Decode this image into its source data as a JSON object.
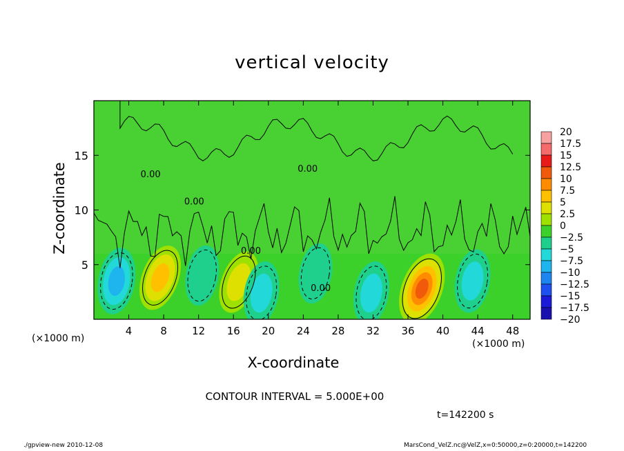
{
  "chart_data": {
    "type": "heatmap",
    "title": "vertical velocity",
    "xlabel": "X-coordinate",
    "ylabel": "Z-coordinate",
    "x_unit_label": "(×1000 m)",
    "xlim": [
      0,
      50
    ],
    "ylim": [
      0,
      20
    ],
    "x_ticks": [
      4,
      8,
      12,
      16,
      20,
      24,
      28,
      32,
      36,
      40,
      44,
      48
    ],
    "y_ticks": [
      5,
      10,
      15
    ],
    "colorbar": {
      "labels": [
        "20",
        "17.5",
        "15",
        "12.5",
        "10",
        "7.5",
        "5",
        "2.5",
        "0",
        "−2.5",
        "−5",
        "−7.5",
        "−10",
        "−12.5",
        "−15",
        "−17.5",
        "−20"
      ],
      "colors": [
        "#f7a1a1",
        "#f56a6a",
        "#e81a1a",
        "#f05a0a",
        "#ff8c00",
        "#ffc000",
        "#dde000",
        "#9ee000",
        "#3cd02a",
        "#1ed08c",
        "#22d8d8",
        "#1eb4ee",
        "#1e84f0",
        "#1e50f0",
        "#1a1ad8",
        "#1a10b0",
        "#7a10c8"
      ]
    },
    "field_levels": [
      {
        "x": 2.6,
        "z": 3.5,
        "w": -7.5
      },
      {
        "x": 7.6,
        "z": 3.8,
        "w": 7.5
      },
      {
        "x": 12.4,
        "z": 4.0,
        "w": -2.5
      },
      {
        "x": 16.6,
        "z": 3.4,
        "w": 5
      },
      {
        "x": 19.2,
        "z": 2.4,
        "w": -5
      },
      {
        "x": 25.4,
        "z": 4.2,
        "w": -2.5
      },
      {
        "x": 31.8,
        "z": 2.4,
        "w": -5
      },
      {
        "x": 37.6,
        "z": 2.8,
        "w": 12.5
      },
      {
        "x": 43.4,
        "z": 3.5,
        "w": -5
      }
    ],
    "contour_labels": [
      "0.00",
      "0.00",
      "0.00",
      "0.00",
      "0.00"
    ],
    "grid": false
  },
  "contour_interval": "CONTOUR INTERVAL = 5.000E+00",
  "time": "t=142200 s",
  "footer_left": "./gpview-new  2010-12-08",
  "footer_right": "MarsCond_VelZ.nc@VelZ,x=0:50000,z=0:20000,t=142200"
}
